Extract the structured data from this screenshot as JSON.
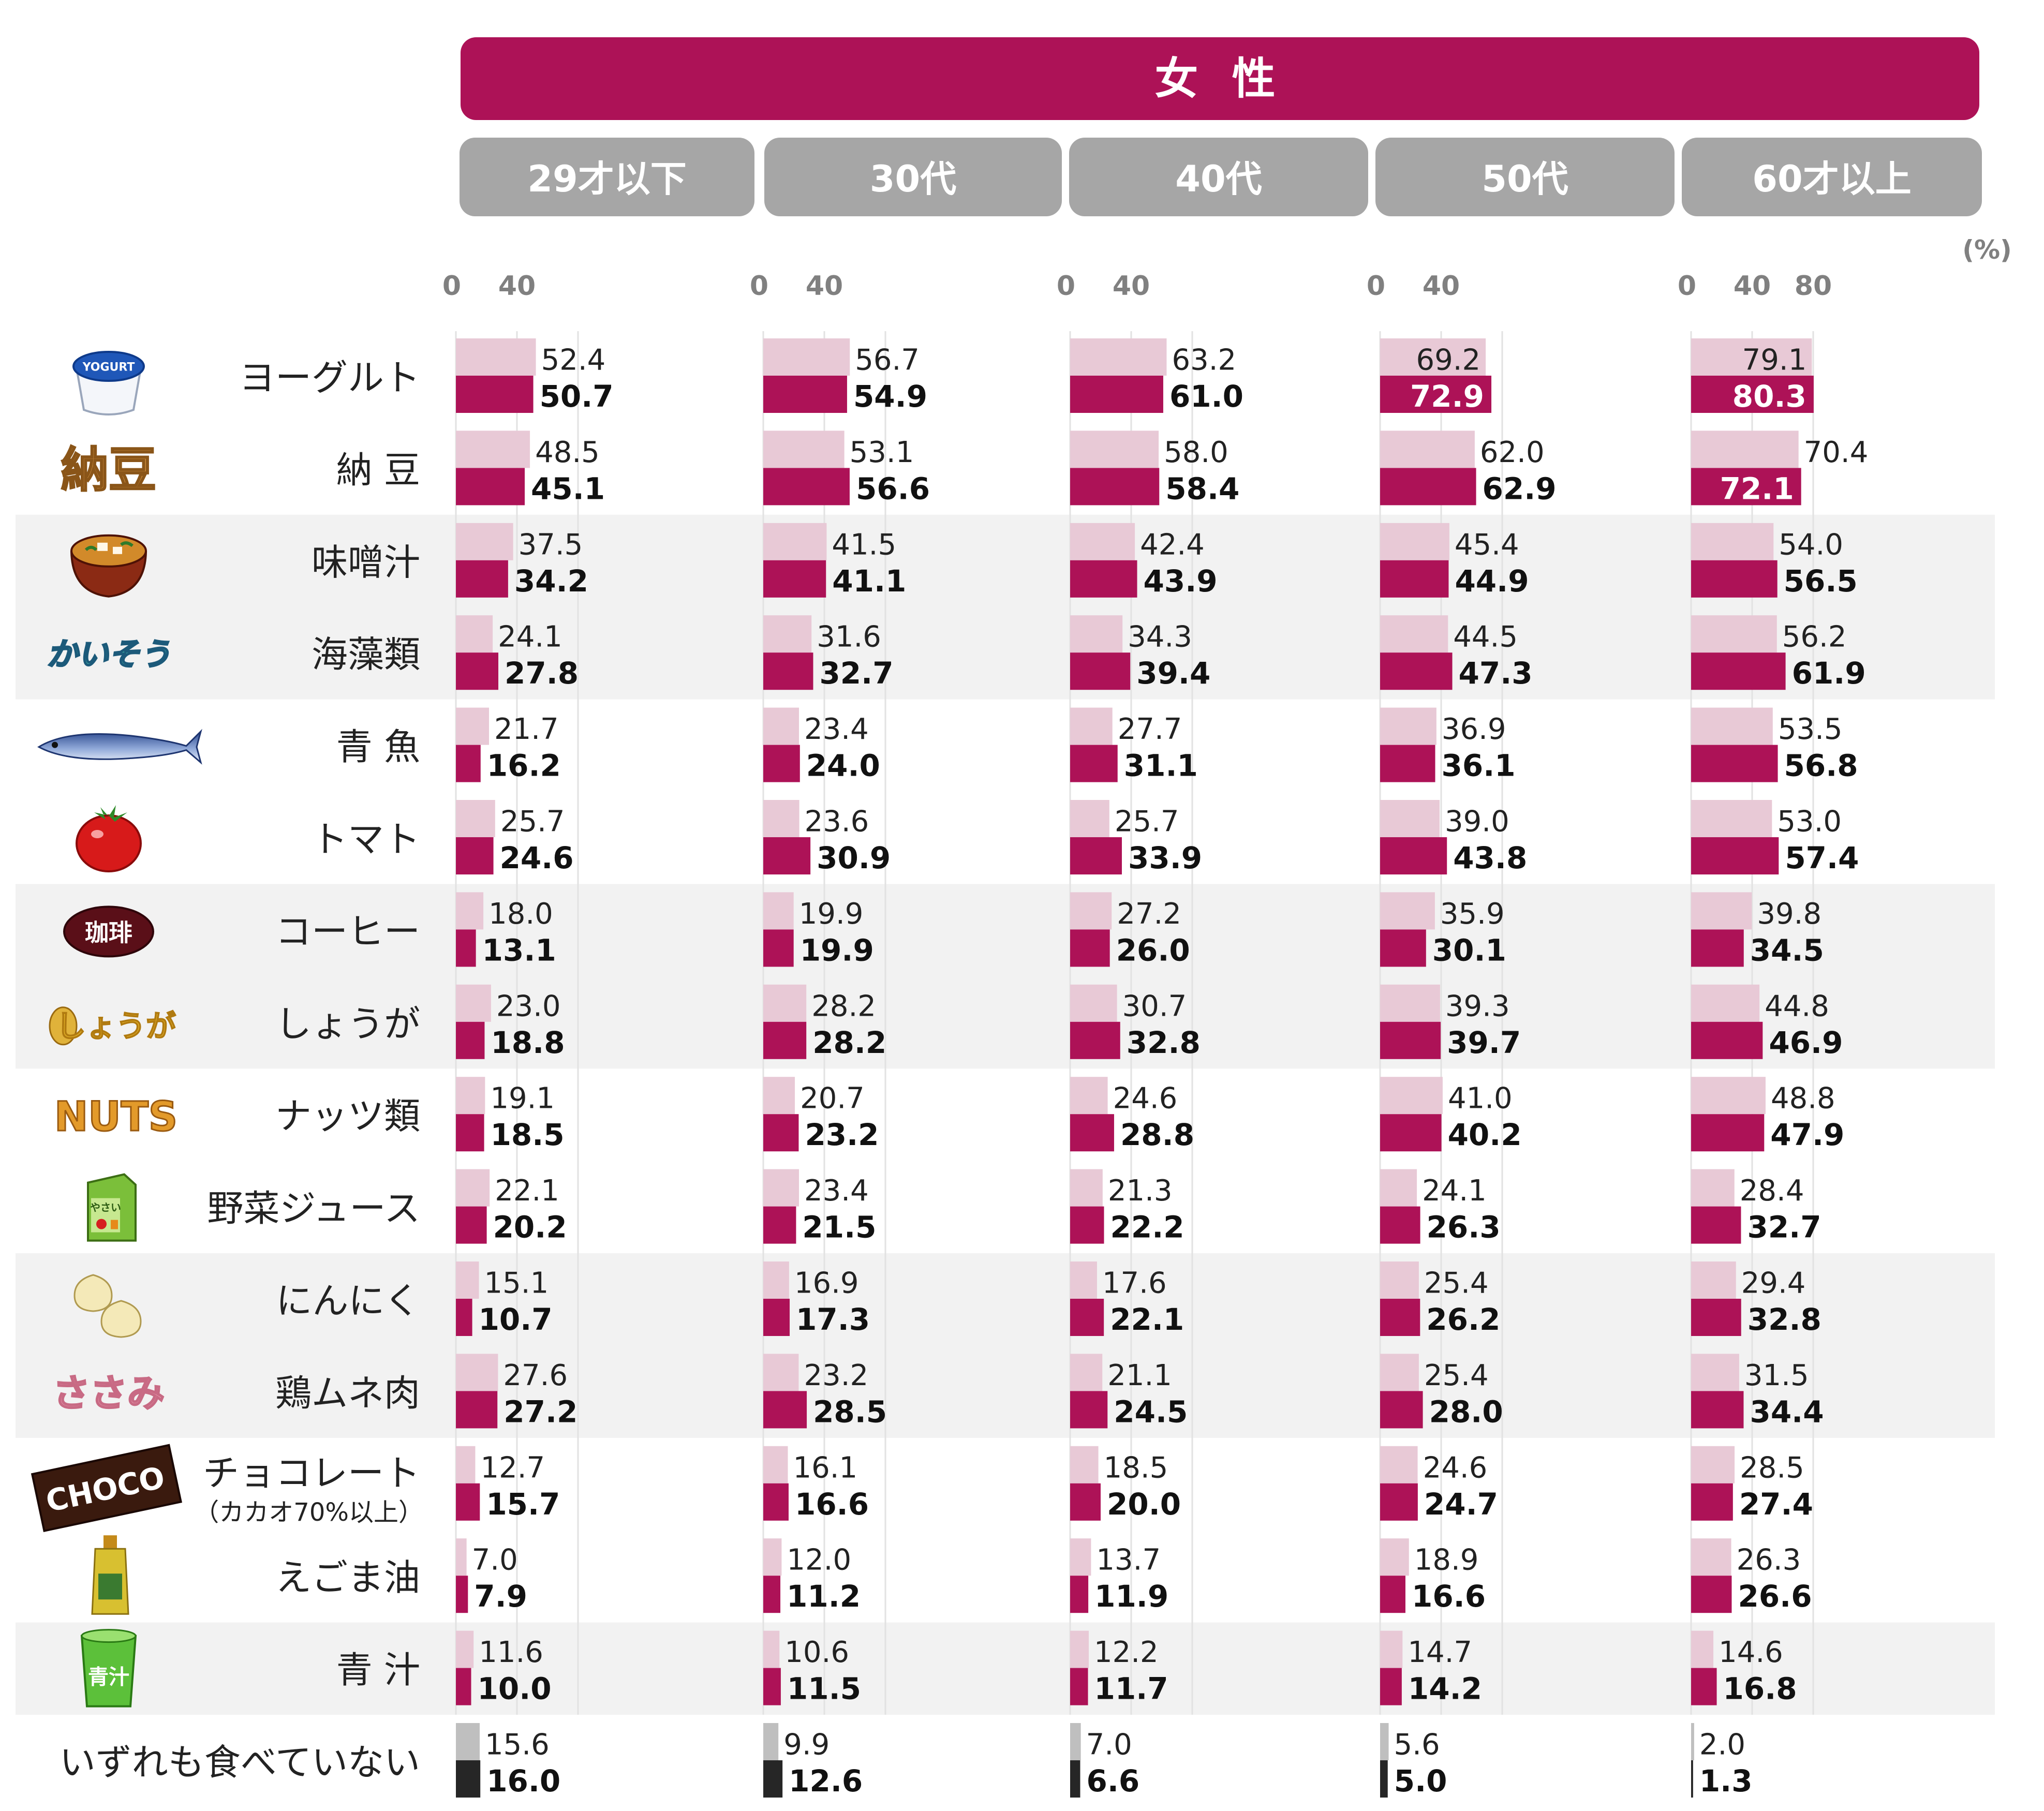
{
  "header": {
    "title": "女 性"
  },
  "chart_data": {
    "type": "bar",
    "orientation": "horizontal",
    "unit": "(%)",
    "xlim": [
      0,
      80
    ],
    "tick_labels": [
      "0",
      "40",
      "80"
    ],
    "groups": [
      "29才以下",
      "30代",
      "40代",
      "50代",
      "60才以上"
    ],
    "categories": [
      {
        "label": "ヨーグルト",
        "icon": "yogurt-icon"
      },
      {
        "label": "納 豆",
        "icon": "natto-icon",
        "icon_text": "納豆"
      },
      {
        "label": "味噌汁",
        "icon": "miso-soup-icon"
      },
      {
        "label": "海藻類",
        "icon": "seaweed-icon",
        "icon_text": "かいそう"
      },
      {
        "label": "青 魚",
        "icon": "fish-icon"
      },
      {
        "label": "トマト",
        "icon": "tomato-icon"
      },
      {
        "label": "コーヒー",
        "icon": "coffee-icon",
        "icon_text": "珈琲"
      },
      {
        "label": "しょうが",
        "icon": "ginger-icon",
        "icon_text": "しょうが"
      },
      {
        "label": "ナッツ類",
        "icon": "nuts-icon",
        "icon_text": "NUTS"
      },
      {
        "label": "野菜ジュース",
        "icon": "vegetable-juice-icon",
        "icon_text": "やさい"
      },
      {
        "label": "にんにく",
        "icon": "garlic-icon"
      },
      {
        "label": "鶏ムネ肉",
        "icon": "chicken-icon",
        "icon_text": "ささみ"
      },
      {
        "label": "チョコレート",
        "sublabel": "（カカオ70%以上）",
        "icon": "chocolate-icon",
        "icon_text": "CHOCO"
      },
      {
        "label": "えごま油",
        "icon": "egoma-oil-icon"
      },
      {
        "label": "青 汁",
        "icon": "aojiru-icon",
        "icon_text": "青汁"
      },
      {
        "label": "いずれも食べていない"
      }
    ],
    "series": [
      {
        "role": "previous",
        "values": [
          [
            52.4,
            48.5,
            37.5,
            24.1,
            21.7,
            25.7,
            18.0,
            23.0,
            19.1,
            22.1,
            15.1,
            27.6,
            12.7,
            7.0,
            11.6,
            15.6
          ],
          [
            56.7,
            53.1,
            41.5,
            31.6,
            23.4,
            23.6,
            19.9,
            28.2,
            20.7,
            23.4,
            16.9,
            23.2,
            16.1,
            12.0,
            10.6,
            9.9
          ],
          [
            63.2,
            58.0,
            42.4,
            34.3,
            27.7,
            25.7,
            27.2,
            30.7,
            24.6,
            21.3,
            17.6,
            21.1,
            18.5,
            13.7,
            12.2,
            7.0
          ],
          [
            69.2,
            62.0,
            45.4,
            44.5,
            36.9,
            39.0,
            35.9,
            39.3,
            41.0,
            24.1,
            25.4,
            25.4,
            24.6,
            18.9,
            14.7,
            5.6
          ],
          [
            79.1,
            70.4,
            54.0,
            56.2,
            53.5,
            53.0,
            39.8,
            44.8,
            48.8,
            28.4,
            29.4,
            31.5,
            28.5,
            26.3,
            14.6,
            2.0
          ]
        ],
        "labels": [
          [
            "52.4",
            "48.5",
            "37.5",
            "24.1",
            "21.7",
            "25.7",
            "18.0",
            "23.0",
            "19.1",
            "22.1",
            "15.1",
            "27.6",
            "12.7",
            "7.0",
            "11.6",
            "15.6"
          ],
          [
            "56.7",
            "53.1",
            "41.5",
            "31.6",
            "23.4",
            "23.6",
            "19.9",
            "28.2",
            "20.7",
            "23.4",
            "16.9",
            "23.2",
            "16.1",
            "12.0",
            "10.6",
            "9.9"
          ],
          [
            "63.2",
            "58.0",
            "42.4",
            "34.3",
            "27.7",
            "25.7",
            "27.2",
            "30.7",
            "24.6",
            "21.3",
            "17.6",
            "21.1",
            "18.5",
            "13.7",
            "12.2",
            "7.0"
          ],
          [
            "69.2",
            "62.0",
            "45.4",
            "44.5",
            "36.9",
            "39.0",
            "35.9",
            "39.3",
            "41.0",
            "24.1",
            "25.4",
            "25.4",
            "24.6",
            "18.9",
            "14.7",
            "5.6"
          ],
          [
            "79.1",
            "70.4",
            "54.0",
            "56.2",
            "53.5",
            "53.0",
            "39.8",
            "44.8",
            "48.8",
            "28.4",
            "29.4",
            "31.5",
            "28.5",
            "26.3",
            "14.6",
            "2.0"
          ]
        ]
      },
      {
        "role": "current",
        "values": [
          [
            50.7,
            45.1,
            34.2,
            27.8,
            16.2,
            24.6,
            13.1,
            18.8,
            18.5,
            20.2,
            10.7,
            27.2,
            15.7,
            7.9,
            10.0,
            16.0
          ],
          [
            54.9,
            56.6,
            41.1,
            32.7,
            24.0,
            30.9,
            19.9,
            28.2,
            23.2,
            21.5,
            17.3,
            28.5,
            16.6,
            11.2,
            11.5,
            12.6
          ],
          [
            61.0,
            58.4,
            43.9,
            39.4,
            31.1,
            33.9,
            26.0,
            32.8,
            28.8,
            22.2,
            22.1,
            24.5,
            20.0,
            11.9,
            11.7,
            6.6
          ],
          [
            72.9,
            62.9,
            44.9,
            47.3,
            36.1,
            43.8,
            30.1,
            39.7,
            40.2,
            26.3,
            26.2,
            28.0,
            24.7,
            16.6,
            14.2,
            5.0
          ],
          [
            80.3,
            72.1,
            56.5,
            61.9,
            56.8,
            57.4,
            34.5,
            46.9,
            47.9,
            32.7,
            32.8,
            34.4,
            27.4,
            26.6,
            16.8,
            1.3
          ]
        ],
        "labels": [
          [
            "50.7",
            "45.1",
            "34.2",
            "27.8",
            "16.2",
            "24.6",
            "13.1",
            "18.8",
            "18.5",
            "20.2",
            "10.7",
            "27.2",
            "15.7",
            "7.9",
            "10.0",
            "16.0"
          ],
          [
            "54.9",
            "56.6",
            "41.1",
            "32.7",
            "24.0",
            "30.9",
            "19.9",
            "28.2",
            "23.2",
            "21.5",
            "17.3",
            "28.5",
            "16.6",
            "11.2",
            "11.5",
            "12.6"
          ],
          [
            "61.0",
            "58.4",
            "43.9",
            "39.4",
            "31.1",
            "33.9",
            "26.0",
            "32.8",
            "28.8",
            "22.2",
            "22.1",
            "24.5",
            "20.0",
            "11.9",
            "11.7",
            "6.6"
          ],
          [
            "72.9",
            "62.9",
            "44.9",
            "47.3",
            "36.1",
            "43.8",
            "30.1",
            "39.7",
            "40.2",
            "26.3",
            "26.2",
            "28.0",
            "24.7",
            "16.6",
            "14.2",
            "5.0"
          ],
          [
            "80.3",
            "72.1",
            "56.5",
            "61.9",
            "56.8",
            "57.4",
            "34.5",
            "46.9",
            "47.9",
            "32.7",
            "32.8",
            "34.4",
            "27.4",
            "26.6",
            "16.8",
            "1.3"
          ]
        ]
      }
    ],
    "grid": true,
    "colors": {
      "header": "#ad1257",
      "group_header": "#a6a6a6",
      "previous": "#e8c9d6",
      "current": "#ad1257",
      "none_previous": "#bfbfbf",
      "none_current": "#262626",
      "band": "#f2f2f2",
      "tick": "#808080"
    }
  }
}
